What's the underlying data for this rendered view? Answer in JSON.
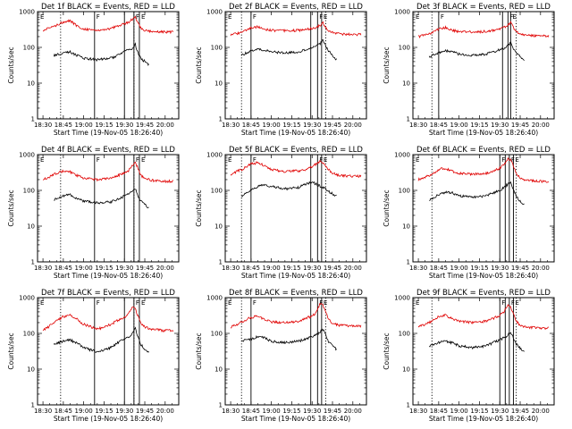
{
  "figure": {
    "xlabel": "Start Time (19-Nov-05 18:26:40)",
    "ylabel": "Counts/sec",
    "x_tick_labels": [
      "18:30",
      "18:45",
      "19:00",
      "19:15",
      "19:30",
      "19:45",
      "20:00"
    ],
    "y_tick_labels": [
      "1",
      "10",
      "100",
      "1000"
    ],
    "series_colors": {
      "events": "#000000",
      "lld": "#e00000"
    },
    "region_markers": [
      "E",
      "F",
      "F",
      "E"
    ]
  },
  "chart_data": [
    {
      "type": "line",
      "title": "Det 1f BLACK = Events, RED = LLD",
      "yscale": "log",
      "ylim": [
        1,
        1000
      ],
      "xlim": [
        "18:26",
        "20:10"
      ],
      "solid_lines": [
        "19:08",
        "19:30",
        "19:37",
        "19:41"
      ],
      "dotted_lines": [
        "18:43",
        "19:37"
      ],
      "series": [
        {
          "name": "Events",
          "x": [
            "18:38",
            "18:45",
            "18:50",
            "18:55",
            "19:00",
            "19:10",
            "19:20",
            "19:25",
            "19:30",
            "19:33",
            "19:36",
            "19:38",
            "19:40",
            "19:42",
            "19:45",
            "19:48"
          ],
          "values": [
            60,
            70,
            75,
            60,
            50,
            45,
            50,
            60,
            75,
            85,
            90,
            120,
            70,
            50,
            40,
            33
          ]
        },
        {
          "name": "LLD",
          "x": [
            "18:30",
            "18:40",
            "18:45",
            "18:50",
            "18:55",
            "19:00",
            "19:10",
            "19:20",
            "19:25",
            "19:30",
            "19:33",
            "19:36",
            "19:38",
            "19:40",
            "19:42",
            "19:45",
            "19:50",
            "20:00",
            "20:06"
          ],
          "values": [
            300,
            420,
            520,
            560,
            400,
            330,
            300,
            340,
            400,
            450,
            500,
            620,
            700,
            480,
            350,
            300,
            280,
            270,
            270
          ]
        }
      ]
    },
    {
      "type": "line",
      "title": "Det 2f BLACK = Events, RED = LLD",
      "yscale": "log",
      "ylim": [
        1,
        1000
      ],
      "xlim": [
        "18:26",
        "20:10"
      ],
      "solid_lines": [
        "18:45",
        "19:29",
        "19:34",
        "19:37"
      ],
      "dotted_lines": [
        "18:38",
        "19:40"
      ],
      "series": [
        {
          "name": "Events",
          "x": [
            "18:38",
            "18:45",
            "18:50",
            "18:55",
            "19:00",
            "19:10",
            "19:20",
            "19:25",
            "19:30",
            "19:33",
            "19:36",
            "19:38",
            "19:40",
            "19:42",
            "19:45",
            "19:48"
          ],
          "values": [
            60,
            80,
            90,
            85,
            75,
            70,
            75,
            85,
            95,
            110,
            130,
            160,
            110,
            80,
            60,
            45
          ]
        },
        {
          "name": "LLD",
          "x": [
            "18:30",
            "18:40",
            "18:45",
            "18:50",
            "18:55",
            "19:00",
            "19:10",
            "19:20",
            "19:25",
            "19:30",
            "19:33",
            "19:36",
            "19:38",
            "19:40",
            "19:42",
            "19:45",
            "19:50",
            "20:00",
            "20:06"
          ],
          "values": [
            220,
            280,
            350,
            380,
            320,
            300,
            290,
            300,
            320,
            340,
            370,
            420,
            480,
            360,
            300,
            260,
            240,
            230,
            230
          ]
        }
      ]
    },
    {
      "type": "line",
      "title": "Det 3f BLACK = Events, RED = LLD",
      "yscale": "log",
      "ylim": [
        1,
        1000
      ],
      "xlim": [
        "18:26",
        "20:10"
      ],
      "solid_lines": [
        "18:45",
        "19:32",
        "19:36",
        "19:38"
      ],
      "dotted_lines": [
        "18:40",
        "19:42"
      ],
      "series": [
        {
          "name": "Events",
          "x": [
            "18:38",
            "18:45",
            "18:50",
            "18:55",
            "19:00",
            "19:10",
            "19:20",
            "19:25",
            "19:30",
            "19:33",
            "19:36",
            "19:38",
            "19:40",
            "19:42",
            "19:45",
            "19:48"
          ],
          "values": [
            55,
            70,
            80,
            75,
            65,
            60,
            65,
            75,
            85,
            95,
            110,
            140,
            95,
            70,
            55,
            40
          ]
        },
        {
          "name": "LLD",
          "x": [
            "18:30",
            "18:40",
            "18:45",
            "18:50",
            "18:55",
            "19:00",
            "19:10",
            "19:20",
            "19:25",
            "19:30",
            "19:33",
            "19:36",
            "19:38",
            "19:40",
            "19:42",
            "19:45",
            "19:50",
            "20:00",
            "20:06"
          ],
          "values": [
            200,
            260,
            330,
            360,
            300,
            280,
            270,
            280,
            300,
            320,
            360,
            420,
            500,
            360,
            280,
            240,
            220,
            210,
            210
          ]
        }
      ]
    },
    {
      "type": "line",
      "title": "Det 4f BLACK = Events, RED = LLD",
      "yscale": "log",
      "ylim": [
        1,
        1000
      ],
      "xlim": [
        "18:26",
        "20:10"
      ],
      "solid_lines": [
        "19:08",
        "19:30",
        "19:37",
        "19:41"
      ],
      "dotted_lines": [
        "18:43",
        "19:37"
      ],
      "series": [
        {
          "name": "Events",
          "x": [
            "18:38",
            "18:45",
            "18:50",
            "18:55",
            "19:00",
            "19:10",
            "19:20",
            "19:25",
            "19:30",
            "19:33",
            "19:36",
            "19:38",
            "19:40",
            "19:42",
            "19:45",
            "19:48"
          ],
          "values": [
            55,
            70,
            75,
            60,
            50,
            45,
            48,
            55,
            70,
            80,
            90,
            110,
            70,
            50,
            40,
            33
          ]
        },
        {
          "name": "LLD",
          "x": [
            "18:30",
            "18:40",
            "18:45",
            "18:50",
            "18:55",
            "19:00",
            "19:10",
            "19:20",
            "19:25",
            "19:30",
            "19:33",
            "19:36",
            "19:38",
            "19:40",
            "19:42",
            "19:45",
            "19:50",
            "20:00",
            "20:06"
          ],
          "values": [
            200,
            300,
            350,
            330,
            260,
            220,
            200,
            220,
            260,
            300,
            350,
            500,
            600,
            420,
            260,
            220,
            190,
            180,
            180
          ]
        }
      ]
    },
    {
      "type": "line",
      "title": "Det 5f BLACK = Events, RED = LLD",
      "yscale": "log",
      "ylim": [
        1,
        1000
      ],
      "xlim": [
        "18:26",
        "20:10"
      ],
      "solid_lines": [
        "18:45",
        "19:29",
        "19:34",
        "19:37"
      ],
      "dotted_lines": [
        "18:38",
        "19:40"
      ],
      "series": [
        {
          "name": "Events",
          "x": [
            "18:38",
            "18:45",
            "18:50",
            "18:55",
            "19:00",
            "19:10",
            "19:20",
            "19:25",
            "19:30",
            "19:33",
            "19:36",
            "19:38",
            "19:40",
            "19:42",
            "19:45",
            "19:48"
          ],
          "values": [
            70,
            100,
            130,
            140,
            130,
            110,
            120,
            150,
            170,
            150,
            130,
            120,
            110,
            95,
            80,
            70
          ]
        },
        {
          "name": "LLD",
          "x": [
            "18:30",
            "18:40",
            "18:45",
            "18:50",
            "18:55",
            "19:00",
            "19:10",
            "19:20",
            "19:25",
            "19:30",
            "19:33",
            "19:36",
            "19:38",
            "19:40",
            "19:42",
            "19:45",
            "19:50",
            "20:00",
            "20:06"
          ],
          "values": [
            280,
            420,
            550,
            600,
            480,
            380,
            340,
            350,
            380,
            460,
            550,
            650,
            600,
            480,
            380,
            300,
            260,
            250,
            250
          ]
        }
      ]
    },
    {
      "type": "line",
      "title": "Det 6f BLACK = Events, RED = LLD",
      "yscale": "log",
      "ylim": [
        1,
        1000
      ],
      "xlim": [
        "18:26",
        "20:10"
      ],
      "solid_lines": [
        "19:30",
        "19:34",
        "19:37",
        "19:40"
      ],
      "dotted_lines": [
        "18:40",
        "19:42"
      ],
      "series": [
        {
          "name": "Events",
          "x": [
            "18:38",
            "18:45",
            "18:50",
            "18:55",
            "19:00",
            "19:10",
            "19:20",
            "19:25",
            "19:30",
            "19:33",
            "19:36",
            "19:38",
            "19:40",
            "19:42",
            "19:45",
            "19:48"
          ],
          "values": [
            55,
            75,
            90,
            85,
            70,
            65,
            70,
            85,
            100,
            120,
            150,
            160,
            110,
            70,
            50,
            40
          ]
        },
        {
          "name": "LLD",
          "x": [
            "18:30",
            "18:40",
            "18:45",
            "18:50",
            "18:55",
            "19:00",
            "19:10",
            "19:20",
            "19:25",
            "19:30",
            "19:33",
            "19:36",
            "19:38",
            "19:40",
            "19:42",
            "19:45",
            "19:50",
            "20:00",
            "20:06"
          ],
          "values": [
            200,
            280,
            380,
            420,
            340,
            300,
            280,
            300,
            350,
            420,
            520,
            800,
            700,
            500,
            300,
            220,
            190,
            180,
            180
          ]
        }
      ]
    },
    {
      "type": "line",
      "title": "Det 7f BLACK = Events, RED = LLD",
      "yscale": "log",
      "ylim": [
        1,
        1000
      ],
      "xlim": [
        "18:26",
        "20:10"
      ],
      "solid_lines": [
        "19:08",
        "19:30",
        "19:37",
        "19:41"
      ],
      "dotted_lines": [
        "18:43",
        "19:37"
      ],
      "series": [
        {
          "name": "Events",
          "x": [
            "18:38",
            "18:45",
            "18:50",
            "18:55",
            "19:00",
            "19:10",
            "19:20",
            "19:25",
            "19:30",
            "19:33",
            "19:36",
            "19:38",
            "19:40",
            "19:42",
            "19:45",
            "19:48"
          ],
          "values": [
            50,
            60,
            65,
            55,
            40,
            30,
            40,
            55,
            70,
            80,
            100,
            140,
            80,
            50,
            35,
            28
          ]
        },
        {
          "name": "LLD",
          "x": [
            "18:30",
            "18:40",
            "18:45",
            "18:50",
            "18:55",
            "19:00",
            "19:10",
            "19:20",
            "19:25",
            "19:30",
            "19:33",
            "19:36",
            "19:38",
            "19:40",
            "19:42",
            "19:45",
            "19:50",
            "20:00",
            "20:06"
          ],
          "values": [
            120,
            220,
            300,
            320,
            250,
            180,
            130,
            180,
            230,
            280,
            350,
            550,
            500,
            300,
            200,
            150,
            130,
            120,
            120
          ]
        }
      ]
    },
    {
      "type": "line",
      "title": "Det 8f BLACK = Events, RED = LLD",
      "yscale": "log",
      "ylim": [
        1,
        1000
      ],
      "xlim": [
        "18:26",
        "20:10"
      ],
      "solid_lines": [
        "18:45",
        "19:29",
        "19:34",
        "19:37"
      ],
      "dotted_lines": [
        "18:38",
        "19:40"
      ],
      "series": [
        {
          "name": "Events",
          "x": [
            "18:38",
            "18:45",
            "18:50",
            "18:55",
            "19:00",
            "19:10",
            "19:20",
            "19:25",
            "19:30",
            "19:33",
            "19:36",
            "19:38",
            "19:40",
            "19:42",
            "19:45",
            "19:48"
          ],
          "values": [
            60,
            70,
            80,
            75,
            60,
            55,
            60,
            70,
            80,
            90,
            110,
            130,
            90,
            60,
            45,
            35
          ]
        },
        {
          "name": "LLD",
          "x": [
            "18:30",
            "18:40",
            "18:45",
            "18:50",
            "18:55",
            "19:00",
            "19:10",
            "19:20",
            "19:25",
            "19:30",
            "19:33",
            "19:36",
            "19:38",
            "19:40",
            "19:42",
            "19:45",
            "19:50",
            "20:00",
            "20:06"
          ],
          "values": [
            150,
            220,
            280,
            300,
            240,
            210,
            200,
            220,
            260,
            310,
            380,
            700,
            600,
            400,
            250,
            190,
            170,
            160,
            160
          ]
        }
      ]
    },
    {
      "type": "line",
      "title": "Det 9f BLACK = Events, RED = LLD",
      "yscale": "log",
      "ylim": [
        1,
        1000
      ],
      "xlim": [
        "18:26",
        "20:10"
      ],
      "solid_lines": [
        "19:30",
        "19:34",
        "19:37",
        "19:40"
      ],
      "dotted_lines": [
        "18:40",
        "19:42"
      ],
      "series": [
        {
          "name": "Events",
          "x": [
            "18:38",
            "18:45",
            "18:50",
            "18:55",
            "19:00",
            "19:10",
            "19:20",
            "19:25",
            "19:30",
            "19:33",
            "19:36",
            "19:38",
            "19:40",
            "19:42",
            "19:45",
            "19:48"
          ],
          "values": [
            45,
            55,
            60,
            55,
            45,
            40,
            45,
            55,
            65,
            75,
            90,
            110,
            75,
            50,
            38,
            30
          ]
        },
        {
          "name": "LLD",
          "x": [
            "18:30",
            "18:40",
            "18:45",
            "18:50",
            "18:55",
            "19:00",
            "19:10",
            "19:20",
            "19:25",
            "19:30",
            "19:33",
            "19:36",
            "19:38",
            "19:40",
            "19:42",
            "19:45",
            "19:50",
            "20:00",
            "20:06"
          ],
          "values": [
            150,
            220,
            300,
            320,
            260,
            220,
            200,
            220,
            260,
            320,
            400,
            650,
            550,
            350,
            220,
            170,
            150,
            140,
            140
          ]
        }
      ]
    }
  ]
}
